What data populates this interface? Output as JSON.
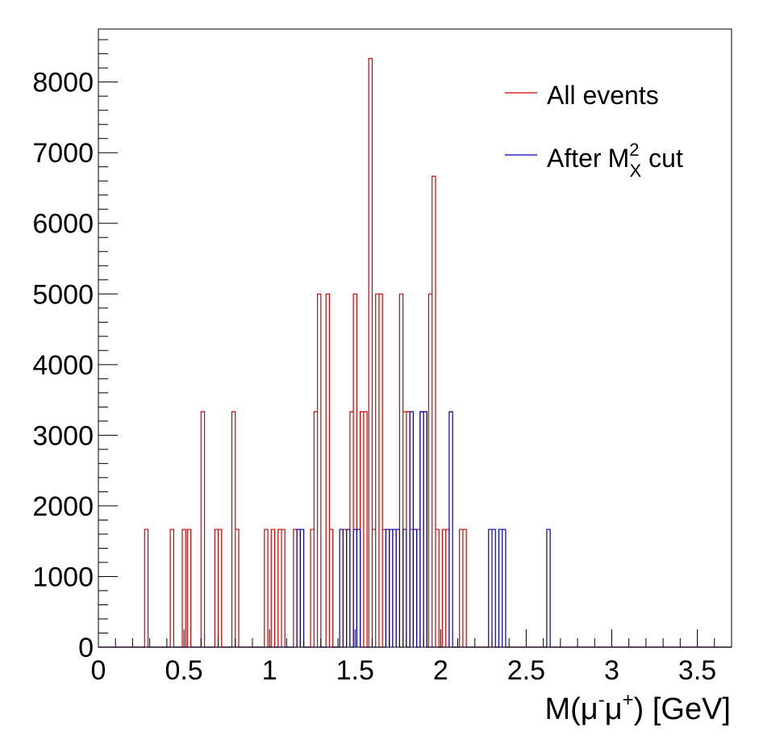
{
  "chart_data": {
    "type": "histogram",
    "xlabel": {
      "main": "M(μ",
      "sup1": "-",
      "mid": "μ",
      "sup2": "+",
      "end": ") [GeV]"
    },
    "ylabel": "",
    "xlim": [
      0,
      3.7
    ],
    "ylim": [
      0,
      8750
    ],
    "x_ticks": [
      {
        "value": 0,
        "label": "0"
      },
      {
        "value": 0.5,
        "label": "0.5"
      },
      {
        "value": 1,
        "label": "1"
      },
      {
        "value": 1.5,
        "label": "1.5"
      },
      {
        "value": 2,
        "label": "2"
      },
      {
        "value": 2.5,
        "label": "2.5"
      },
      {
        "value": 3,
        "label": "3"
      },
      {
        "value": 3.5,
        "label": "3.5"
      }
    ],
    "y_ticks": [
      {
        "value": 0,
        "label": "0"
      },
      {
        "value": 1000,
        "label": "1000"
      },
      {
        "value": 2000,
        "label": "2000"
      },
      {
        "value": 3000,
        "label": "3000"
      },
      {
        "value": 4000,
        "label": "4000"
      },
      {
        "value": 5000,
        "label": "5000"
      },
      {
        "value": 6000,
        "label": "6000"
      },
      {
        "value": 7000,
        "label": "7000"
      },
      {
        "value": 8000,
        "label": "8000"
      }
    ],
    "legend_position": "top-right",
    "series": [
      {
        "name": "All events",
        "color": "#d40000",
        "bins": [
          {
            "x": 0.28,
            "y": 1667
          },
          {
            "x": 0.43,
            "y": 1667
          },
          {
            "x": 0.5,
            "y": 1667
          },
          {
            "x": 0.53,
            "y": 1667
          },
          {
            "x": 0.61,
            "y": 3333
          },
          {
            "x": 0.69,
            "y": 1667
          },
          {
            "x": 0.71,
            "y": 1667
          },
          {
            "x": 0.79,
            "y": 3333
          },
          {
            "x": 0.81,
            "y": 1667
          },
          {
            "x": 0.98,
            "y": 1667
          },
          {
            "x": 1.02,
            "y": 1667
          },
          {
            "x": 1.06,
            "y": 1667
          },
          {
            "x": 1.08,
            "y": 1667
          },
          {
            "x": 1.15,
            "y": 1667
          },
          {
            "x": 1.17,
            "y": 1667
          },
          {
            "x": 1.25,
            "y": 1667
          },
          {
            "x": 1.27,
            "y": 3333
          },
          {
            "x": 1.29,
            "y": 5000
          },
          {
            "x": 1.34,
            "y": 5000
          },
          {
            "x": 1.36,
            "y": 1667
          },
          {
            "x": 1.44,
            "y": 1667
          },
          {
            "x": 1.46,
            "y": 1667
          },
          {
            "x": 1.48,
            "y": 3333
          },
          {
            "x": 1.5,
            "y": 5000
          },
          {
            "x": 1.52,
            "y": 1667
          },
          {
            "x": 1.54,
            "y": 3333
          },
          {
            "x": 1.56,
            "y": 3333
          },
          {
            "x": 1.59,
            "y": 8333
          },
          {
            "x": 1.61,
            "y": 1667
          },
          {
            "x": 1.63,
            "y": 5000
          },
          {
            "x": 1.65,
            "y": 5000
          },
          {
            "x": 1.67,
            "y": 1667
          },
          {
            "x": 1.69,
            "y": 1667
          },
          {
            "x": 1.71,
            "y": 1667
          },
          {
            "x": 1.73,
            "y": 1667
          },
          {
            "x": 1.75,
            "y": 1667
          },
          {
            "x": 1.77,
            "y": 5000
          },
          {
            "x": 1.79,
            "y": 3333
          },
          {
            "x": 1.81,
            "y": 3333
          },
          {
            "x": 1.83,
            "y": 1667
          },
          {
            "x": 1.85,
            "y": 1667
          },
          {
            "x": 1.87,
            "y": 1667
          },
          {
            "x": 1.89,
            "y": 3333
          },
          {
            "x": 1.91,
            "y": 3333
          },
          {
            "x": 1.94,
            "y": 5000
          },
          {
            "x": 1.96,
            "y": 6667
          },
          {
            "x": 1.98,
            "y": 1667
          },
          {
            "x": 2.02,
            "y": 1667
          },
          {
            "x": 2.04,
            "y": 1667
          },
          {
            "x": 2.12,
            "y": 1667
          },
          {
            "x": 2.14,
            "y": 1667
          }
        ]
      },
      {
        "name": "After",
        "name_suffix": "cut",
        "name_math": {
          "base": "M",
          "sup": "2",
          "sub": "X"
        },
        "color": "#0000b0",
        "bins": [
          {
            "x": 1.17,
            "y": 1667
          },
          {
            "x": 1.19,
            "y": 1667
          },
          {
            "x": 1.42,
            "y": 1667
          },
          {
            "x": 1.46,
            "y": 1667
          },
          {
            "x": 1.5,
            "y": 1667
          },
          {
            "x": 1.52,
            "y": 1667
          },
          {
            "x": 1.69,
            "y": 1667
          },
          {
            "x": 1.71,
            "y": 1667
          },
          {
            "x": 1.73,
            "y": 1667
          },
          {
            "x": 1.75,
            "y": 1667
          },
          {
            "x": 1.79,
            "y": 1667
          },
          {
            "x": 1.83,
            "y": 3333
          },
          {
            "x": 1.85,
            "y": 1667
          },
          {
            "x": 1.89,
            "y": 3333
          },
          {
            "x": 1.91,
            "y": 3333
          },
          {
            "x": 2.06,
            "y": 3333
          },
          {
            "x": 2.29,
            "y": 1667
          },
          {
            "x": 2.31,
            "y": 1667
          },
          {
            "x": 2.35,
            "y": 1667
          },
          {
            "x": 2.37,
            "y": 1667
          },
          {
            "x": 2.63,
            "y": 1667
          }
        ]
      }
    ]
  }
}
